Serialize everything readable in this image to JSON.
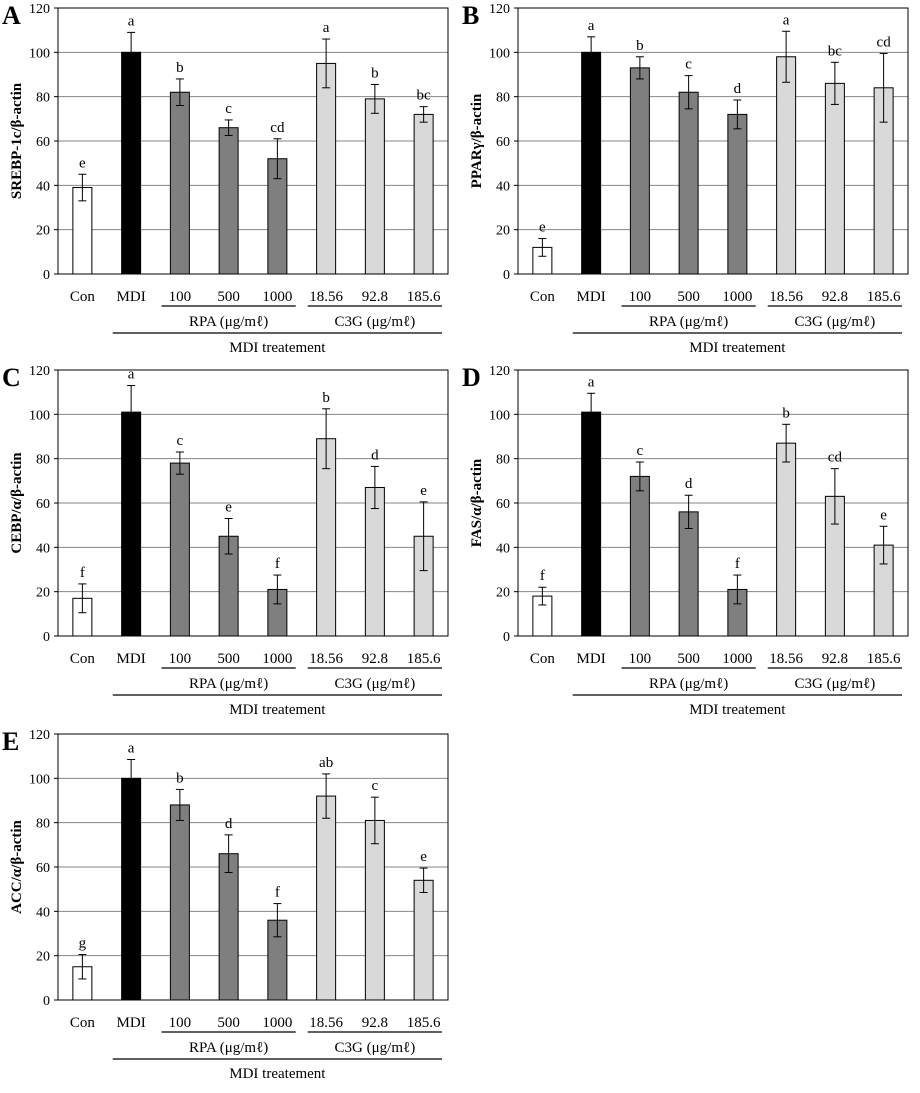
{
  "group_labels": {
    "rpa": "RPA (μg/mℓ)",
    "c3g": "C3G (μg/mℓ)",
    "treatment": "MDI treatement"
  },
  "categories": [
    "Con",
    "MDI",
    "100",
    "500",
    "1000",
    "18.56",
    "92.8",
    "185.6"
  ],
  "bar_colors": [
    "#ffffff",
    "#000000",
    "#7f7f7f",
    "#7f7f7f",
    "#7f7f7f",
    "#d9d9d9",
    "#d9d9d9",
    "#d9d9d9"
  ],
  "chart_data": [
    {
      "type": "bar",
      "panel_letter": "A",
      "ylabel": "SREBP-1c/β-actin",
      "ylim": [
        0,
        120
      ],
      "yticks": [
        0,
        20,
        40,
        60,
        80,
        100,
        120
      ],
      "categories": [
        "Con",
        "MDI",
        "100",
        "500",
        "1000",
        "18.56",
        "92.8",
        "185.6"
      ],
      "values": [
        39,
        100,
        82,
        66,
        52,
        95,
        79,
        72
      ],
      "errors": [
        6,
        9,
        6,
        3.5,
        9,
        11,
        6.5,
        3.5
      ],
      "letters": [
        "e",
        "a",
        "b",
        "c",
        "cd",
        "a",
        "b",
        "bc"
      ]
    },
    {
      "type": "bar",
      "panel_letter": "B",
      "ylabel": "PPARγ/β-actin",
      "ylim": [
        0,
        120
      ],
      "yticks": [
        0,
        20,
        40,
        60,
        80,
        100,
        120
      ],
      "categories": [
        "Con",
        "MDI",
        "100",
        "500",
        "1000",
        "18.56",
        "92.8",
        "185.6"
      ],
      "values": [
        12,
        100,
        93,
        82,
        72,
        98,
        86,
        84
      ],
      "errors": [
        4,
        7,
        5,
        7.5,
        6.5,
        11.5,
        9.5,
        15.5
      ],
      "letters": [
        "e",
        "a",
        "b",
        "c",
        "d",
        "a",
        "bc",
        "cd"
      ]
    },
    {
      "type": "bar",
      "panel_letter": "C",
      "ylabel": "CEBP/α/β-actin",
      "ylim": [
        0,
        120
      ],
      "yticks": [
        0,
        20,
        40,
        60,
        80,
        100,
        120
      ],
      "categories": [
        "Con",
        "MDI",
        "100",
        "500",
        "1000",
        "18.56",
        "92.8",
        "185.6"
      ],
      "values": [
        17,
        101,
        78,
        45,
        21,
        89,
        67,
        45
      ],
      "errors": [
        6.5,
        12,
        5,
        8,
        6.5,
        13.5,
        9.5,
        15.5
      ],
      "letters": [
        "f",
        "a",
        "c",
        "e",
        "f",
        "b",
        "d",
        "e"
      ]
    },
    {
      "type": "bar",
      "panel_letter": "D",
      "ylabel": "FAS/α/β-actin",
      "ylim": [
        0,
        120
      ],
      "yticks": [
        0,
        20,
        40,
        60,
        80,
        100,
        120
      ],
      "categories": [
        "Con",
        "MDI",
        "100",
        "500",
        "1000",
        "18.56",
        "92.8",
        "185.6"
      ],
      "values": [
        18,
        101,
        72,
        56,
        21,
        87,
        63,
        41
      ],
      "errors": [
        4,
        8.5,
        6.5,
        7.5,
        6.5,
        8.5,
        12.5,
        8.5
      ],
      "letters": [
        "f",
        "a",
        "c",
        "d",
        "f",
        "b",
        "cd",
        "e"
      ]
    },
    {
      "type": "bar",
      "panel_letter": "E",
      "ylabel": "ACC/α/β-actin",
      "ylim": [
        0,
        120
      ],
      "yticks": [
        0,
        20,
        40,
        60,
        80,
        100,
        120
      ],
      "categories": [
        "Con",
        "MDI",
        "100",
        "500",
        "1000",
        "18.56",
        "92.8",
        "185.6"
      ],
      "values": [
        15,
        100,
        88,
        66,
        36,
        92,
        81,
        54
      ],
      "errors": [
        5.5,
        8.5,
        7,
        8.5,
        7.5,
        10,
        10.5,
        5.5
      ],
      "letters": [
        "g",
        "a",
        "b",
        "d",
        "f",
        "ab",
        "c",
        "e"
      ]
    }
  ]
}
